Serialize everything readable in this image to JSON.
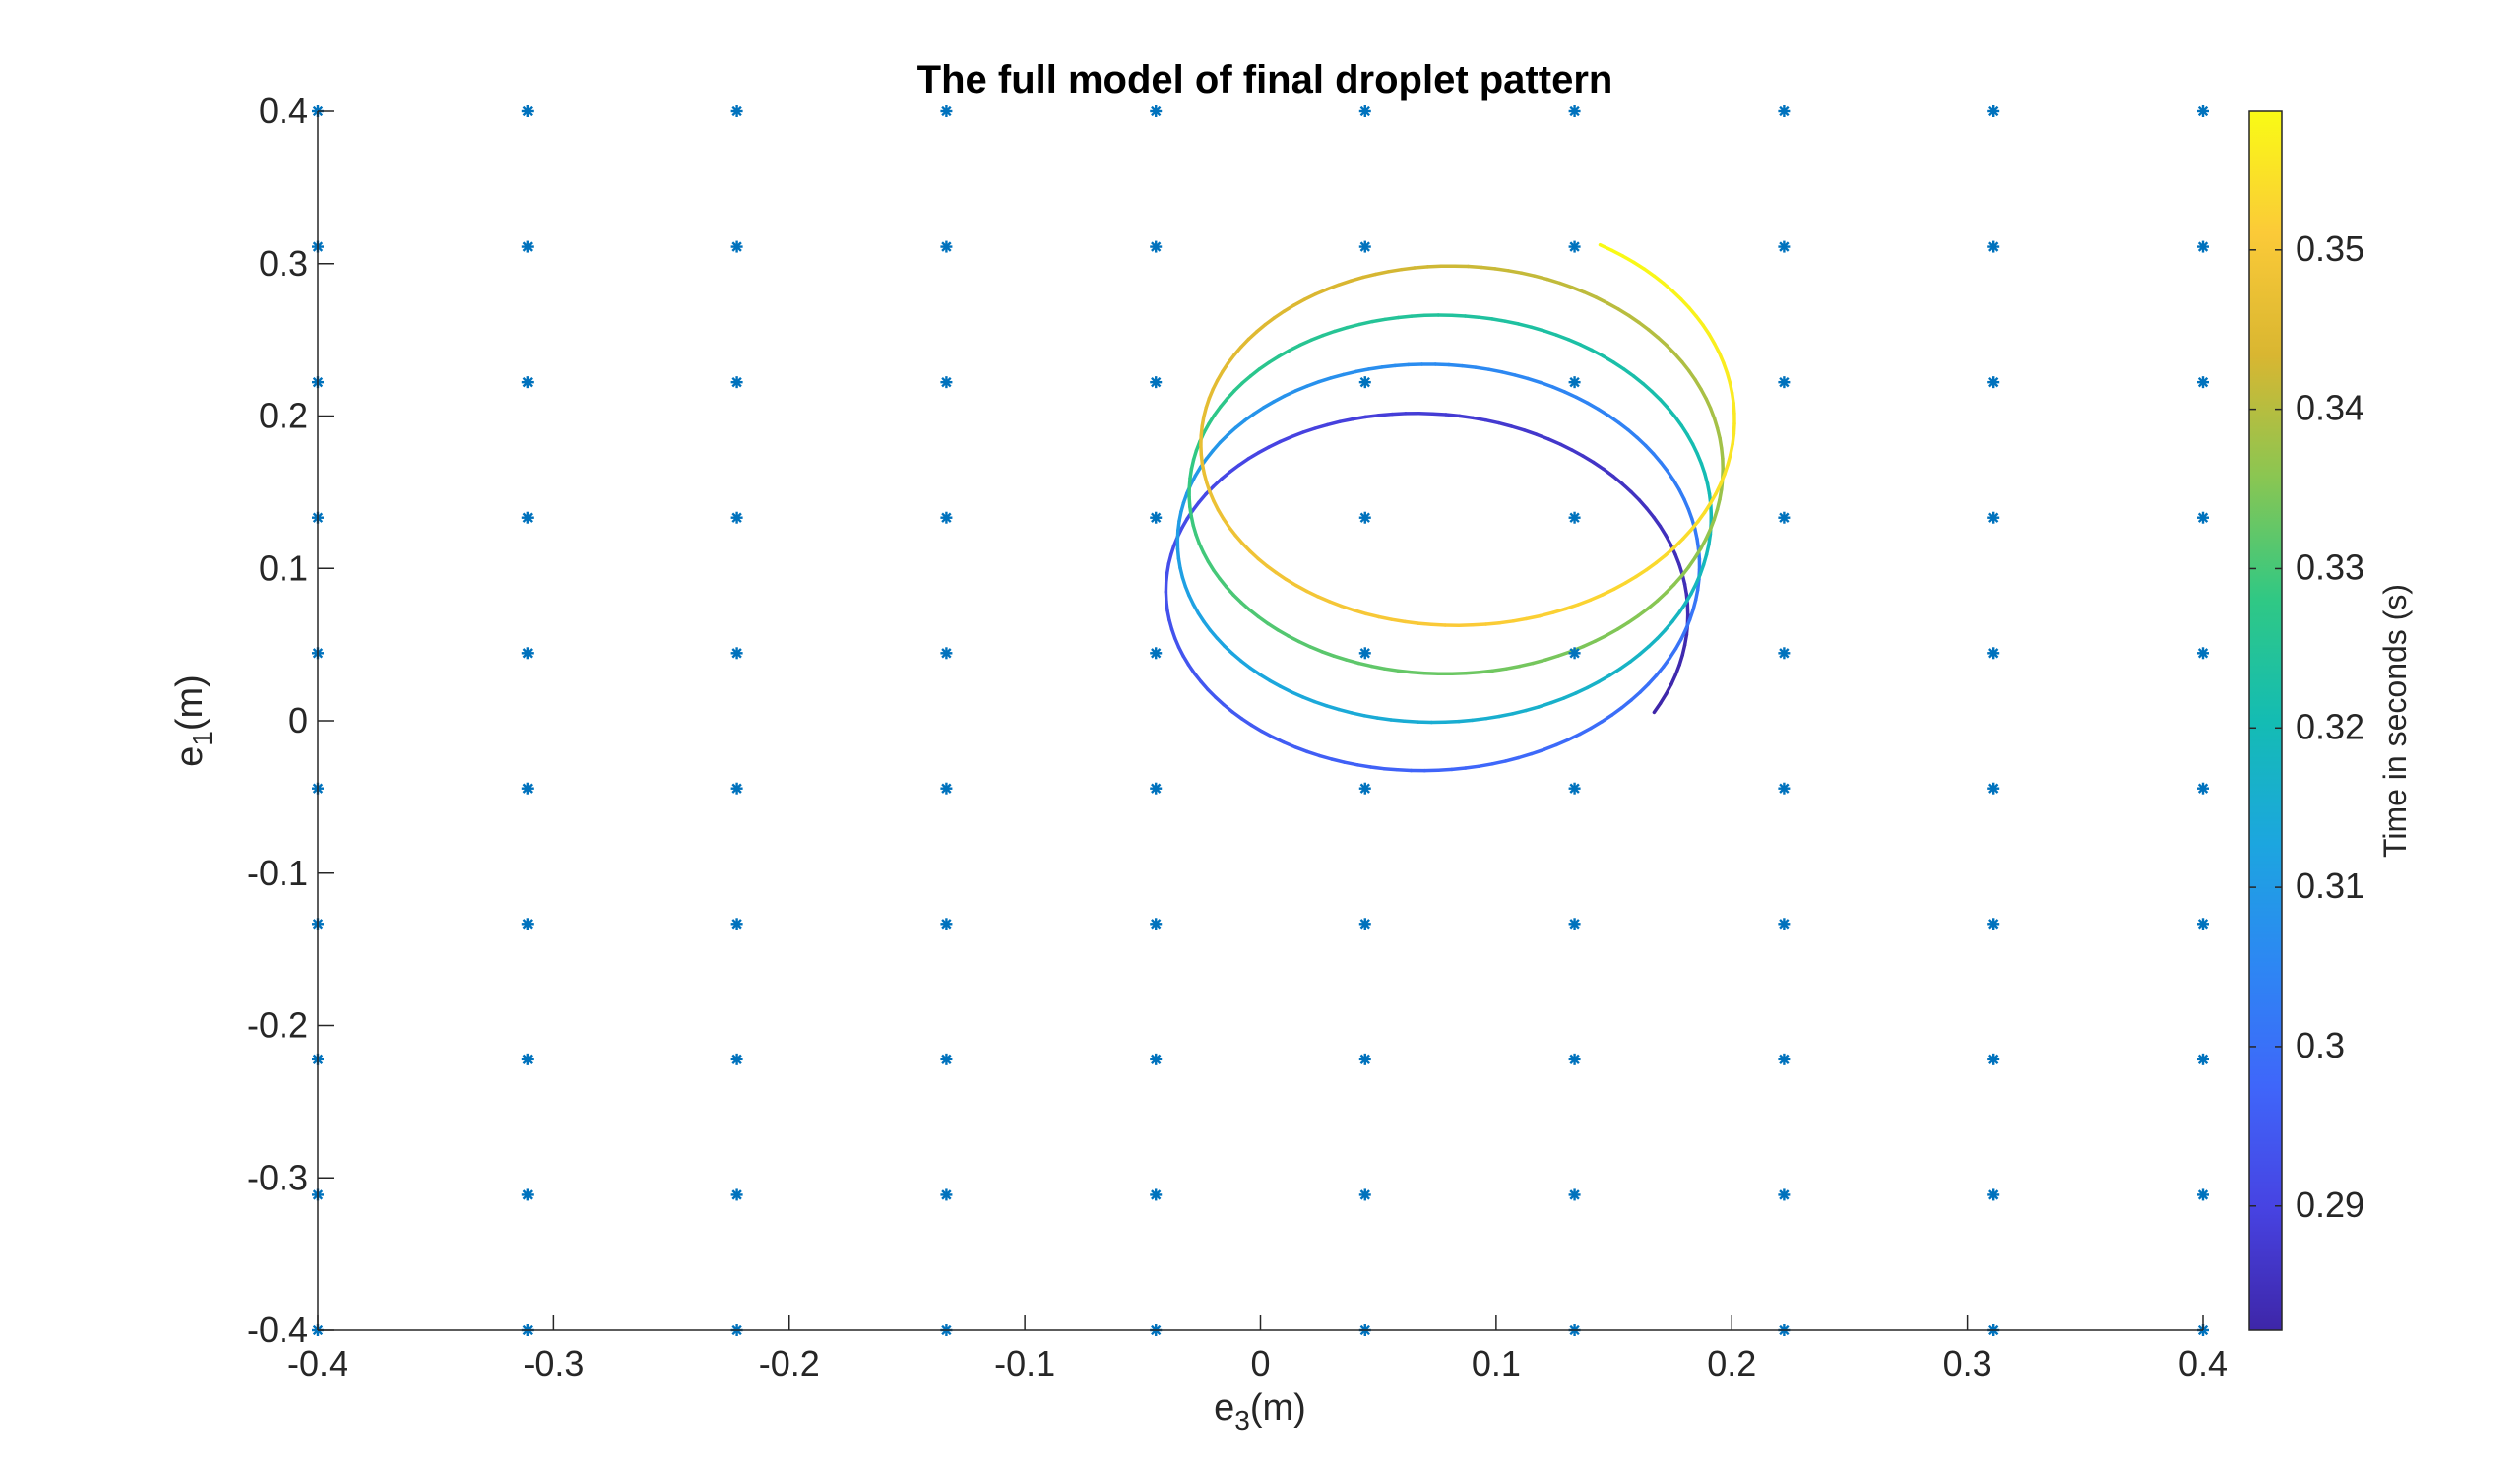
{
  "chart_data": {
    "type": "scatter+line",
    "title": "The full model of final droplet pattern",
    "xlabel": {
      "base": "e",
      "sub": "3",
      "unit": "(m)"
    },
    "ylabel": {
      "base": "e",
      "sub": "1",
      "unit": "(m)"
    },
    "xlim": [
      -0.4,
      0.4
    ],
    "ylim": [
      -0.4,
      0.4
    ],
    "xticks": [
      "-0.4",
      "-0.3",
      "-0.2",
      "-0.1",
      "0",
      "0.1",
      "0.2",
      "0.3",
      "0.4"
    ],
    "yticks": [
      "-0.4",
      "-0.3",
      "-0.2",
      "-0.1",
      "0",
      "0.1",
      "0.2",
      "0.3",
      "0.4"
    ],
    "xtick_values": [
      -0.4,
      -0.3,
      -0.2,
      -0.1,
      0,
      0.1,
      0.2,
      0.3,
      0.4
    ],
    "ytick_values": [
      -0.4,
      -0.3,
      -0.2,
      -0.1,
      0,
      0.1,
      0.2,
      0.3,
      0.4
    ],
    "grid": false,
    "marker_series": {
      "marker": "asterisk",
      "color": "#0072BD",
      "x": [
        -0.4,
        -0.3111,
        -0.2222,
        -0.1333,
        -0.0444,
        0.0444,
        0.1333,
        0.2222,
        0.3111,
        0.4
      ],
      "y": [
        -0.4,
        -0.3111,
        -0.2222,
        -0.1333,
        -0.0444,
        0.0444,
        0.1333,
        0.2222,
        0.3111,
        0.4
      ]
    },
    "trajectory": {
      "start": [
        0.168,
        0.005
      ],
      "end": [
        0.133,
        0.32
      ],
      "t_start": 0.2822,
      "t_end": 0.3587,
      "turns": 4.25,
      "center_start": [
        0.069,
        0.066
      ],
      "center_end": [
        0.09,
        0.202
      ],
      "radius_x": 0.112,
      "radius_y_start": 0.125,
      "radius_y_end": 0.126
    },
    "colorbar": {
      "label": "Time in seconds (s)",
      "clim": [
        0.2822,
        0.3587
      ],
      "ticks": [
        "0.29",
        "0.3",
        "0.31",
        "0.32",
        "0.33",
        "0.34",
        "0.35"
      ],
      "tick_values": [
        0.29,
        0.3,
        0.31,
        0.32,
        0.33,
        0.34,
        0.35
      ],
      "colormap": "parula"
    }
  }
}
